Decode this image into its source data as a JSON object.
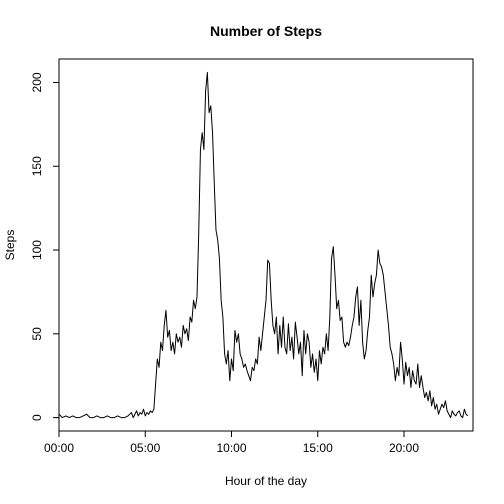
{
  "chart_data": {
    "type": "line",
    "title": "Number of Steps",
    "xlabel": "Hour of the day",
    "ylabel": "Steps",
    "xlim": [
      0,
      24
    ],
    "ylim": [
      -8,
      214
    ],
    "grid": false,
    "x_ticks": [
      {
        "value": 0,
        "label": "00:00"
      },
      {
        "value": 5,
        "label": "05:00"
      },
      {
        "value": 10,
        "label": "10:00"
      },
      {
        "value": 15,
        "label": "15:00"
      },
      {
        "value": 20,
        "label": "20:00"
      }
    ],
    "y_ticks": [
      {
        "value": 0,
        "label": "0"
      },
      {
        "value": 50,
        "label": "50"
      },
      {
        "value": 100,
        "label": "100"
      },
      {
        "value": 150,
        "label": "150"
      },
      {
        "value": 200,
        "label": "200"
      }
    ],
    "series": [
      {
        "color": "#000000",
        "points": [
          [
            0.0,
            2
          ],
          [
            0.2,
            0
          ],
          [
            0.4,
            1
          ],
          [
            0.6,
            0
          ],
          [
            0.8,
            1
          ],
          [
            1.0,
            0
          ],
          [
            1.2,
            0
          ],
          [
            1.4,
            1
          ],
          [
            1.6,
            2
          ],
          [
            1.8,
            0
          ],
          [
            2.0,
            0
          ],
          [
            2.2,
            1
          ],
          [
            2.4,
            0
          ],
          [
            2.6,
            0
          ],
          [
            2.8,
            1
          ],
          [
            3.0,
            0
          ],
          [
            3.2,
            0
          ],
          [
            3.4,
            1
          ],
          [
            3.6,
            0
          ],
          [
            3.8,
            0
          ],
          [
            4.0,
            1
          ],
          [
            4.2,
            3
          ],
          [
            4.3,
            0
          ],
          [
            4.4,
            2
          ],
          [
            4.5,
            4
          ],
          [
            4.6,
            1
          ],
          [
            4.7,
            3
          ],
          [
            4.8,
            2
          ],
          [
            4.9,
            5
          ],
          [
            5.0,
            1
          ],
          [
            5.1,
            3
          ],
          [
            5.2,
            2
          ],
          [
            5.3,
            4
          ],
          [
            5.4,
            3
          ],
          [
            5.5,
            5
          ],
          [
            5.6,
            20
          ],
          [
            5.7,
            35
          ],
          [
            5.8,
            30
          ],
          [
            5.9,
            45
          ],
          [
            6.0,
            40
          ],
          [
            6.1,
            55
          ],
          [
            6.2,
            64
          ],
          [
            6.3,
            48
          ],
          [
            6.4,
            52
          ],
          [
            6.5,
            40
          ],
          [
            6.6,
            45
          ],
          [
            6.7,
            38
          ],
          [
            6.8,
            50
          ],
          [
            6.9,
            45
          ],
          [
            7.0,
            48
          ],
          [
            7.1,
            42
          ],
          [
            7.2,
            55
          ],
          [
            7.3,
            50
          ],
          [
            7.4,
            53
          ],
          [
            7.5,
            46
          ],
          [
            7.6,
            60
          ],
          [
            7.7,
            57
          ],
          [
            7.8,
            70
          ],
          [
            7.9,
            65
          ],
          [
            8.0,
            72
          ],
          [
            8.1,
            110
          ],
          [
            8.2,
            160
          ],
          [
            8.3,
            170
          ],
          [
            8.4,
            160
          ],
          [
            8.5,
            195
          ],
          [
            8.6,
            206
          ],
          [
            8.7,
            182
          ],
          [
            8.8,
            186
          ],
          [
            8.9,
            170
          ],
          [
            9.0,
            140
          ],
          [
            9.1,
            112
          ],
          [
            9.2,
            106
          ],
          [
            9.3,
            95
          ],
          [
            9.4,
            70
          ],
          [
            9.5,
            60
          ],
          [
            9.6,
            38
          ],
          [
            9.7,
            32
          ],
          [
            9.8,
            40
          ],
          [
            9.9,
            22
          ],
          [
            10.0,
            35
          ],
          [
            10.1,
            28
          ],
          [
            10.2,
            52
          ],
          [
            10.3,
            45
          ],
          [
            10.4,
            50
          ],
          [
            10.5,
            38
          ],
          [
            10.6,
            35
          ],
          [
            10.7,
            30
          ],
          [
            10.8,
            32
          ],
          [
            10.9,
            28
          ],
          [
            11.0,
            25
          ],
          [
            11.1,
            22
          ],
          [
            11.2,
            30
          ],
          [
            11.3,
            28
          ],
          [
            11.4,
            35
          ],
          [
            11.5,
            32
          ],
          [
            11.6,
            48
          ],
          [
            11.7,
            40
          ],
          [
            11.8,
            50
          ],
          [
            11.9,
            60
          ],
          [
            12.0,
            70
          ],
          [
            12.1,
            94
          ],
          [
            12.2,
            92
          ],
          [
            12.3,
            70
          ],
          [
            12.4,
            55
          ],
          [
            12.5,
            50
          ],
          [
            12.6,
            60
          ],
          [
            12.7,
            38
          ],
          [
            12.8,
            55
          ],
          [
            12.9,
            42
          ],
          [
            13.0,
            60
          ],
          [
            13.1,
            42
          ],
          [
            13.2,
            38
          ],
          [
            13.3,
            56
          ],
          [
            13.4,
            40
          ],
          [
            13.5,
            48
          ],
          [
            13.6,
            35
          ],
          [
            13.7,
            57
          ],
          [
            13.8,
            48
          ],
          [
            13.9,
            38
          ],
          [
            14.0,
            45
          ],
          [
            14.1,
            25
          ],
          [
            14.2,
            52
          ],
          [
            14.3,
            38
          ],
          [
            14.4,
            50
          ],
          [
            14.5,
            45
          ],
          [
            14.6,
            30
          ],
          [
            14.7,
            38
          ],
          [
            14.8,
            27
          ],
          [
            14.9,
            35
          ],
          [
            15.0,
            22
          ],
          [
            15.1,
            40
          ],
          [
            15.2,
            32
          ],
          [
            15.3,
            42
          ],
          [
            15.4,
            38
          ],
          [
            15.5,
            50
          ],
          [
            15.6,
            40
          ],
          [
            15.7,
            60
          ],
          [
            15.8,
            95
          ],
          [
            15.9,
            102
          ],
          [
            16.0,
            85
          ],
          [
            16.1,
            65
          ],
          [
            16.2,
            70
          ],
          [
            16.3,
            58
          ],
          [
            16.4,
            60
          ],
          [
            16.5,
            45
          ],
          [
            16.6,
            42
          ],
          [
            16.7,
            45
          ],
          [
            16.8,
            43
          ],
          [
            16.9,
            48
          ],
          [
            17.0,
            55
          ],
          [
            17.1,
            60
          ],
          [
            17.2,
            72
          ],
          [
            17.3,
            78
          ],
          [
            17.4,
            55
          ],
          [
            17.5,
            70
          ],
          [
            17.6,
            45
          ],
          [
            17.7,
            35
          ],
          [
            17.8,
            40
          ],
          [
            17.9,
            52
          ],
          [
            18.0,
            60
          ],
          [
            18.1,
            85
          ],
          [
            18.2,
            72
          ],
          [
            18.3,
            80
          ],
          [
            18.4,
            85
          ],
          [
            18.5,
            100
          ],
          [
            18.6,
            92
          ],
          [
            18.7,
            90
          ],
          [
            18.8,
            85
          ],
          [
            18.9,
            75
          ],
          [
            19.0,
            65
          ],
          [
            19.1,
            55
          ],
          [
            19.2,
            42
          ],
          [
            19.3,
            38
          ],
          [
            19.4,
            32
          ],
          [
            19.5,
            22
          ],
          [
            19.6,
            30
          ],
          [
            19.7,
            25
          ],
          [
            19.8,
            45
          ],
          [
            19.9,
            35
          ],
          [
            20.0,
            20
          ],
          [
            20.1,
            33
          ],
          [
            20.2,
            25
          ],
          [
            20.3,
            30
          ],
          [
            20.4,
            18
          ],
          [
            20.5,
            28
          ],
          [
            20.6,
            22
          ],
          [
            20.7,
            20
          ],
          [
            20.8,
            32
          ],
          [
            20.9,
            18
          ],
          [
            21.0,
            25
          ],
          [
            21.1,
            18
          ],
          [
            21.2,
            12
          ],
          [
            21.3,
            15
          ],
          [
            21.4,
            10
          ],
          [
            21.5,
            16
          ],
          [
            21.6,
            7
          ],
          [
            21.7,
            12
          ],
          [
            21.8,
            5
          ],
          [
            21.9,
            8
          ],
          [
            22.0,
            2
          ],
          [
            22.1,
            5
          ],
          [
            22.2,
            8
          ],
          [
            22.3,
            6
          ],
          [
            22.4,
            10
          ],
          [
            22.5,
            4
          ],
          [
            22.6,
            2
          ],
          [
            22.7,
            0
          ],
          [
            22.8,
            4
          ],
          [
            22.9,
            2
          ],
          [
            23.0,
            1
          ],
          [
            23.1,
            3
          ],
          [
            23.2,
            4
          ],
          [
            23.3,
            1
          ],
          [
            23.4,
            0
          ],
          [
            23.5,
            5
          ],
          [
            23.6,
            2
          ],
          [
            23.7,
            1
          ]
        ]
      }
    ]
  }
}
